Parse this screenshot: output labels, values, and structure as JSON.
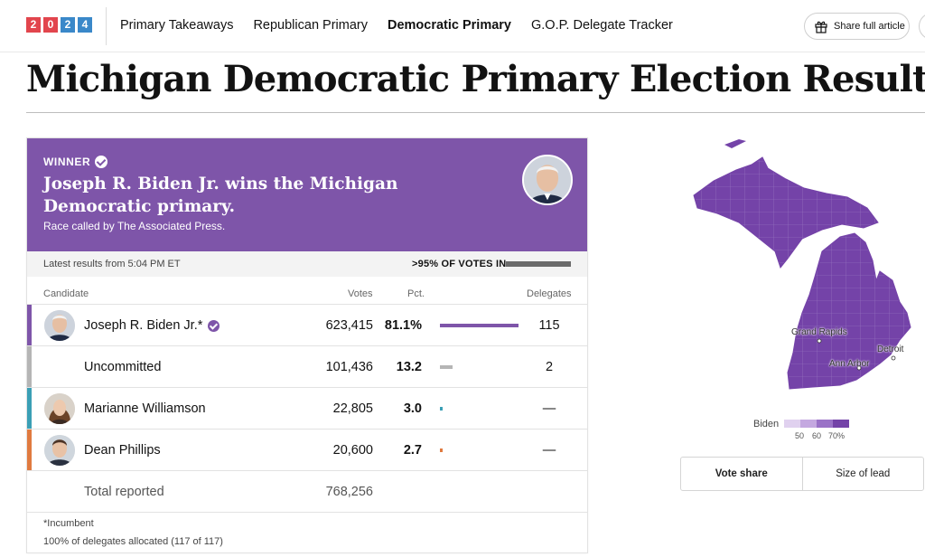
{
  "logo": {
    "digits": [
      "2",
      "0",
      "2",
      "4"
    ]
  },
  "nav": {
    "links": [
      "Primary Takeaways",
      "Republican Primary",
      "Democratic Primary",
      "G.O.P. Delegate Tracker"
    ],
    "share_label": "Share full article"
  },
  "title": "Michigan Democratic Primary Election Results",
  "winner": {
    "label": "WINNER",
    "headline": "Joseph R. Biden Jr. wins the Michigan Democratic primary.",
    "called_by": "Race called by The Associated Press."
  },
  "status": {
    "latest": "Latest results from 5:04 PM ET",
    "reporting": ">95% OF VOTES IN",
    "reporting_fraction": 0.95
  },
  "table": {
    "headers": {
      "candidate": "Candidate",
      "votes": "Votes",
      "pct": "Pct.",
      "delegates": "Delegates"
    },
    "rows": [
      {
        "name": "Joseph R. Biden Jr.*",
        "votes": "623,415",
        "pct": "81.1%",
        "pct_value": 81.1,
        "delegates": "115",
        "color": "#7e55a9",
        "winner": true,
        "has_photo": true
      },
      {
        "name": "Uncommitted",
        "votes": "101,436",
        "pct": "13.2",
        "pct_value": 13.2,
        "delegates": "2",
        "color": "#b5b5b5",
        "winner": false,
        "has_photo": false
      },
      {
        "name": "Marianne Williamson",
        "votes": "22,805",
        "pct": "3.0",
        "pct_value": 3.0,
        "delegates": "—",
        "color": "#3a9fb5",
        "winner": false,
        "has_photo": true
      },
      {
        "name": "Dean Phillips",
        "votes": "20,600",
        "pct": "2.7",
        "pct_value": 2.7,
        "delegates": "—",
        "color": "#e07a3f",
        "winner": false,
        "has_photo": true
      }
    ],
    "total_label": "Total reported",
    "total_votes": "768,256"
  },
  "footnotes": {
    "incumbent": "*Incumbent",
    "delegates_allocated": "100% of delegates allocated (117 of 117)"
  },
  "map": {
    "cities": [
      "Grand Rapids",
      "Detroit",
      "Ann Arbor"
    ],
    "legend": {
      "label": "Biden",
      "ticks": [
        "50",
        "60",
        "70%"
      ],
      "colors": [
        "#e0d1ef",
        "#c4a8e0",
        "#9a72c7",
        "#7443a8"
      ]
    }
  },
  "toggle": {
    "options": [
      "Vote share",
      "Size of lead"
    ]
  }
}
